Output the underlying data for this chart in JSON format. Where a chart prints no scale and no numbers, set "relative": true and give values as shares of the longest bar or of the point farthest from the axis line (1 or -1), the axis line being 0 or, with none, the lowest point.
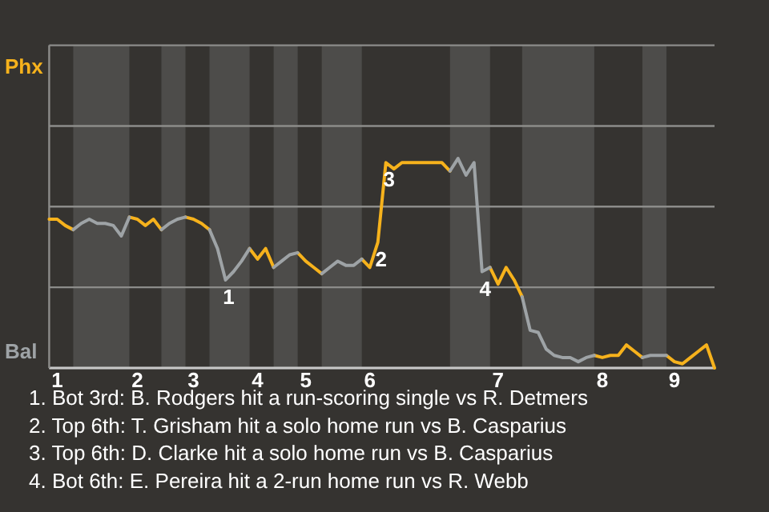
{
  "chart_data": {
    "type": "line",
    "relative": true,
    "ylim": [
      0,
      1.54
    ],
    "categories": [
      null,
      "1",
      null,
      null,
      null,
      null,
      null,
      null,
      null,
      null,
      null,
      "2",
      null,
      null,
      null,
      null,
      null,
      null,
      "3",
      null,
      null,
      null,
      null,
      null,
      null,
      null,
      "4",
      null,
      null,
      null,
      null,
      null,
      "5",
      null,
      null,
      null,
      null,
      null,
      null,
      null,
      "6",
      null,
      null,
      null,
      null,
      null,
      null,
      null,
      null,
      null,
      null,
      null,
      null,
      null,
      null,
      null,
      "7",
      null,
      null,
      null,
      null,
      null,
      null,
      null,
      null,
      null,
      null,
      null,
      null,
      "8",
      null,
      null,
      null,
      null,
      null,
      null,
      null,
      null,
      "9",
      null,
      null,
      null,
      null,
      null
    ],
    "grid": true,
    "marker": "none",
    "line_style": "solid",
    "series": [
      {
        "color": "#f6b21c",
        "values": [
          0.71,
          0.71,
          0.68,
          0.66,
          null,
          null,
          null,
          null,
          null,
          null,
          0.72,
          0.71,
          0.68,
          0.71,
          0.66,
          null,
          null,
          0.72,
          0.71,
          0.69,
          0.66,
          null,
          null,
          null,
          null,
          0.57,
          0.52,
          0.57,
          0.48,
          null,
          null,
          0.55,
          0.51,
          0.48,
          0.45,
          null,
          null,
          null,
          null,
          0.52,
          0.48,
          0.6,
          0.98,
          0.95,
          0.98,
          0.98,
          0.98,
          0.98,
          0.98,
          0.98,
          0.94,
          null,
          null,
          null,
          null,
          0.48,
          0.4,
          0.48,
          0.42,
          0.34,
          null,
          null,
          null,
          null,
          null,
          null,
          null,
          null,
          0.06,
          0.05,
          0.06,
          0.06,
          0.11,
          0.08,
          0.05,
          null,
          null,
          0.06,
          0.03,
          0.02,
          0.05,
          0.08,
          0.11,
          0
        ]
      },
      {
        "color": "#9ea3a6",
        "values": [
          null,
          null,
          null,
          0.66,
          0.69,
          0.71,
          0.69,
          0.69,
          0.68,
          0.63,
          0.72,
          null,
          null,
          null,
          0.66,
          0.69,
          0.71,
          0.72,
          null,
          null,
          0.66,
          0.57,
          0.42,
          0.46,
          0.51,
          0.57,
          null,
          null,
          0.48,
          0.51,
          0.54,
          0.55,
          null,
          null,
          0.45,
          0.48,
          0.51,
          0.49,
          0.49,
          0.52,
          null,
          null,
          null,
          null,
          null,
          null,
          null,
          null,
          null,
          null,
          0.94,
          1,
          0.92,
          0.98,
          0.46,
          0.48,
          null,
          null,
          null,
          0.34,
          0.18,
          0.17,
          0.09,
          0.06,
          0.05,
          0.05,
          0.03,
          0.05,
          0.06,
          null,
          null,
          null,
          null,
          null,
          0.05,
          0.06,
          0.06,
          0.06,
          null,
          null,
          null,
          null,
          null,
          null
        ]
      }
    ],
    "annotations": [
      "Phx",
      "Bal",
      {
        "text": "1",
        "y": 0.42
      },
      {
        "text": "2",
        "y": 0.6
      },
      {
        "text": "3",
        "y": 0.98
      },
      {
        "text": "4",
        "y": 0.46
      },
      "1. Bot 3rd: B. Rodgers hit a run-scoring single vs R. Detmers",
      "2. Top 6th: T. Grisham hit a solo home run vs B. Casparius",
      "3. Top 6th: D. Clarke hit a solo home run vs B. Casparius",
      "4. Bot 6th: E. Pereira hit a 2-run home run vs R. Webb"
    ]
  }
}
